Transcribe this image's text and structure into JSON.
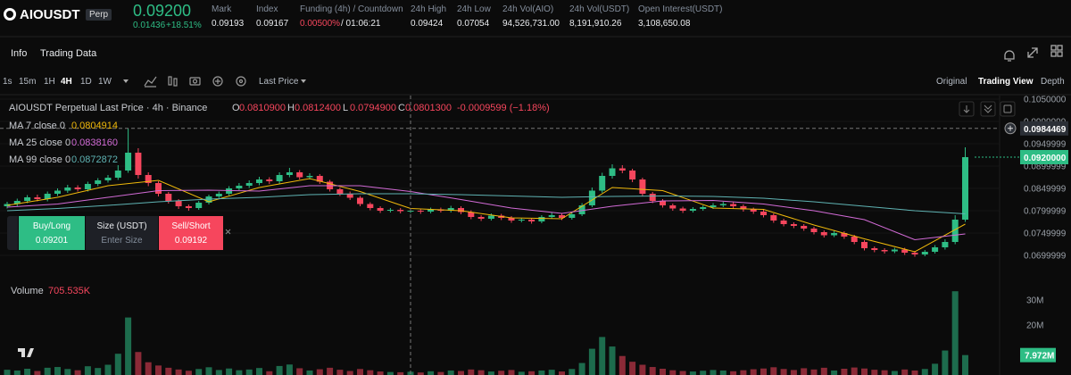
{
  "header": {
    "symbol": "AIOUSDT",
    "badge": "Perp",
    "price": "0.09200",
    "change": "0.01436",
    "change_pct": "+18.51%",
    "stats": [
      {
        "label": "Mark",
        "value": "0.09193"
      },
      {
        "label": "Index",
        "value": "0.09167"
      },
      {
        "label": "Funding (4h) / Countdown",
        "value": "0.00500%",
        "extra": "/ 01:06:21"
      },
      {
        "label": "24h High",
        "value": "0.09424"
      },
      {
        "label": "24h Low",
        "value": "0.07054"
      },
      {
        "label": "24h Vol(AIO)",
        "value": "94,526,731.00"
      },
      {
        "label": "24h Vol(USDT)",
        "value": "8,191,910.26"
      },
      {
        "label": "Open Interest(USDT)",
        "value": "3,108,650.08"
      }
    ]
  },
  "tabs": [
    "Info",
    "Trading Data"
  ],
  "toolbar": {
    "intervals": [
      "1s",
      "15m",
      "1H",
      "4H",
      "1D",
      "1W"
    ],
    "active_interval": 3,
    "price_source": "Last Price",
    "views": [
      "Original",
      "Trading View",
      "Depth"
    ],
    "active_view": 1
  },
  "order": {
    "buy": "Buy/Long",
    "buy_price": "0.09201",
    "size": "Size (USDT)",
    "size_placeholder": "Enter Size",
    "sell": "Sell/Short",
    "sell_price": "0.09192"
  },
  "chart_data": {
    "type": "candlestick",
    "title": "AIOUSDT Perpetual Last Price · 4h · Binance",
    "ohlc": [
      {
        "label": "O",
        "value": "0.0810900"
      },
      {
        "label": "H",
        "value": "0.0812400"
      },
      {
        "label": "L",
        "value": "0.0794900"
      },
      {
        "label": "C",
        "value": "0.0801300"
      }
    ],
    "change": "-0.0009599 (−1.18%)",
    "colors": {
      "up": "#2ebd85",
      "down": "#f6465d"
    },
    "ylim": [
      0.0642,
      0.1058
    ],
    "yticks": [
      {
        "value": 0.105,
        "label": "0.1050000"
      },
      {
        "value": 0.0999999,
        "label": "0.0999999"
      },
      {
        "value": 0.0949999,
        "label": "0.0949999"
      },
      {
        "value": 0.0899999,
        "label": "0.0899999"
      },
      {
        "value": 0.0849999,
        "label": "0.0849999"
      },
      {
        "value": 0.0799999,
        "label": "0.0799999"
      },
      {
        "value": 0.0749999,
        "label": "0.0749999"
      },
      {
        "value": 0.0699999,
        "label": "0.0699999"
      }
    ],
    "crosshair": {
      "value": 0.0984469,
      "label": "0.0984469"
    },
    "last_price": {
      "value": 0.092,
      "label": "0.0920000"
    },
    "first_open": 0.081,
    "closes": [
      0.0815,
      0.0822,
      0.083,
      0.0826,
      0.0838,
      0.0845,
      0.0852,
      0.0848,
      0.086,
      0.0868,
      0.0874,
      0.089,
      0.093,
      0.088,
      0.0862,
      0.0838,
      0.0822,
      0.081,
      0.0806,
      0.0818,
      0.0832,
      0.0838,
      0.085,
      0.0856,
      0.0862,
      0.087,
      0.0866,
      0.088,
      0.0886,
      0.0875,
      0.0878,
      0.0865,
      0.0848,
      0.0838,
      0.0829,
      0.0815,
      0.0806,
      0.08,
      0.0802,
      0.0799,
      0.08,
      0.0798,
      0.0803,
      0.08,
      0.0806,
      0.0797,
      0.0786,
      0.0782,
      0.0789,
      0.0784,
      0.0778,
      0.078,
      0.0776,
      0.0786,
      0.079,
      0.0784,
      0.0792,
      0.0812,
      0.0845,
      0.0878,
      0.0895,
      0.089,
      0.087,
      0.0838,
      0.0822,
      0.0812,
      0.0805,
      0.08,
      0.0804,
      0.0808,
      0.0812,
      0.0815,
      0.081,
      0.0803,
      0.0798,
      0.079,
      0.0778,
      0.077,
      0.0766,
      0.076,
      0.0752,
      0.0745,
      0.075,
      0.0742,
      0.073,
      0.0716,
      0.0712,
      0.0709,
      0.0713,
      0.0706,
      0.0702,
      0.0708,
      0.0718,
      0.073,
      0.078,
      0.092
    ],
    "highs": [
      0.082,
      0.0827,
      0.0835,
      0.0836,
      0.0843,
      0.085,
      0.0858,
      0.0857,
      0.0865,
      0.0873,
      0.088,
      0.0902,
      0.0984,
      0.094,
      0.0886,
      0.0866,
      0.0842,
      0.0826,
      0.0814,
      0.0822,
      0.0836,
      0.0843,
      0.0855,
      0.0862,
      0.0868,
      0.0876,
      0.0875,
      0.0886,
      0.0896,
      0.0891,
      0.0884,
      0.0882,
      0.0869,
      0.0852,
      0.0843,
      0.0833,
      0.0819,
      0.081,
      0.0806,
      0.0806,
      0.0804,
      0.0804,
      0.0807,
      0.0807,
      0.0811,
      0.081,
      0.0801,
      0.079,
      0.0794,
      0.0793,
      0.0788,
      0.0784,
      0.0784,
      0.079,
      0.0796,
      0.0794,
      0.0797,
      0.0817,
      0.0852,
      0.0885,
      0.0904,
      0.0902,
      0.0894,
      0.0874,
      0.0842,
      0.0826,
      0.0816,
      0.0809,
      0.0808,
      0.0812,
      0.0817,
      0.082,
      0.0819,
      0.0814,
      0.0807,
      0.0802,
      0.0794,
      0.0782,
      0.0774,
      0.077,
      0.0764,
      0.0756,
      0.0755,
      0.0754,
      0.0746,
      0.0734,
      0.072,
      0.0716,
      0.0717,
      0.0717,
      0.071,
      0.0712,
      0.0723,
      0.0736,
      0.079,
      0.0942
    ],
    "lows": [
      0.0805,
      0.081,
      0.0817,
      0.0821,
      0.0821,
      0.0833,
      0.084,
      0.0843,
      0.0843,
      0.0855,
      0.0863,
      0.0869,
      0.0885,
      0.0872,
      0.0855,
      0.0832,
      0.0816,
      0.0804,
      0.08,
      0.0802,
      0.0814,
      0.0828,
      0.0834,
      0.0846,
      0.0851,
      0.0857,
      0.086,
      0.0861,
      0.0875,
      0.087,
      0.087,
      0.086,
      0.0843,
      0.0833,
      0.0824,
      0.081,
      0.0801,
      0.0795,
      0.0796,
      0.0794,
      0.0795,
      0.0793,
      0.0794,
      0.0796,
      0.0796,
      0.0792,
      0.0781,
      0.0777,
      0.0778,
      0.0779,
      0.0773,
      0.0774,
      0.0771,
      0.0772,
      0.0782,
      0.0779,
      0.078,
      0.0788,
      0.0808,
      0.084,
      0.0872,
      0.0884,
      0.0864,
      0.0832,
      0.0817,
      0.0807,
      0.08,
      0.0795,
      0.0796,
      0.08,
      0.0804,
      0.0808,
      0.0805,
      0.0798,
      0.0793,
      0.0785,
      0.0773,
      0.0765,
      0.0761,
      0.0755,
      0.0747,
      0.074,
      0.0741,
      0.0737,
      0.0725,
      0.0711,
      0.0707,
      0.0704,
      0.0705,
      0.0701,
      0.0697,
      0.0698,
      0.0704,
      0.0713,
      0.0725,
      0.0775
    ],
    "ma_x": [
      0,
      5,
      10,
      15,
      20,
      25,
      30,
      35,
      40,
      45,
      50,
      55,
      60,
      65,
      70,
      75,
      80,
      85,
      90,
      95
    ],
    "series": [
      {
        "name": "MA 7 close 0",
        "legend_value": "0.0804914",
        "color": "#f0b90b",
        "values": [
          0.0812,
          0.083,
          0.0856,
          0.0868,
          0.082,
          0.0852,
          0.0872,
          0.0843,
          0.0805,
          0.08,
          0.0784,
          0.0782,
          0.0852,
          0.0845,
          0.0806,
          0.0803,
          0.0768,
          0.0737,
          0.0708,
          0.077
        ]
      },
      {
        "name": "MA 25 close 0",
        "legend_value": "0.0838160",
        "color": "#d26bd6",
        "values": [
          0.0808,
          0.0815,
          0.083,
          0.0845,
          0.0846,
          0.0844,
          0.0856,
          0.0856,
          0.0843,
          0.0825,
          0.0806,
          0.0794,
          0.081,
          0.0822,
          0.0823,
          0.0815,
          0.08,
          0.078,
          0.0735,
          0.0748
        ]
      },
      {
        "name": "MA 99 close 0",
        "legend_value": "0.0872872",
        "color": "#5fb3b3",
        "values": [
          0.08,
          0.0805,
          0.0812,
          0.082,
          0.0826,
          0.083,
          0.0836,
          0.0838,
          0.0838,
          0.0836,
          0.0833,
          0.083,
          0.0832,
          0.0833,
          0.0832,
          0.0828,
          0.082,
          0.081,
          0.08,
          0.0793
        ]
      }
    ],
    "volume": {
      "label": "Volume",
      "value_label": "705.535K",
      "ylim": [
        0,
        35000000
      ],
      "yticks": [
        {
          "value": 30000000,
          "label": "30M"
        },
        {
          "value": 20000000,
          "label": "20M"
        }
      ],
      "last_tag": {
        "value": 7972000,
        "label": "7.972M"
      },
      "values": [
        2100000,
        1800000,
        2500000,
        1600000,
        2900000,
        3200000,
        2400000,
        1900000,
        3500000,
        2800000,
        4100000,
        8500000,
        23000000,
        9200000,
        5100000,
        3800000,
        2900000,
        2200000,
        1700000,
        2400000,
        3100000,
        2000000,
        2600000,
        1900000,
        2200000,
        2800000,
        1500000,
        3600000,
        4200000,
        2700000,
        1800000,
        2300000,
        2900000,
        2100000,
        1600000,
        2400000,
        1900000,
        1400000,
        1200000,
        1100000,
        1300000,
        1000000,
        1500000,
        1200000,
        1800000,
        1600000,
        2200000,
        1900000,
        1400000,
        1700000,
        2000000,
        1300000,
        1500000,
        1800000,
        2100000,
        1400000,
        2400000,
        4800000,
        10500000,
        15200000,
        11400000,
        7600000,
        5300000,
        4100000,
        3200000,
        2500000,
        1900000,
        1600000,
        1400000,
        1700000,
        2000000,
        1800000,
        1500000,
        1900000,
        2300000,
        2600000,
        3100000,
        2400000,
        2000000,
        2700000,
        2200000,
        2900000,
        1800000,
        2500000,
        3000000,
        2600000,
        2100000,
        1900000,
        1600000,
        2200000,
        1800000,
        2400000,
        4500000,
        9800000,
        33500000,
        7972000
      ]
    }
  }
}
